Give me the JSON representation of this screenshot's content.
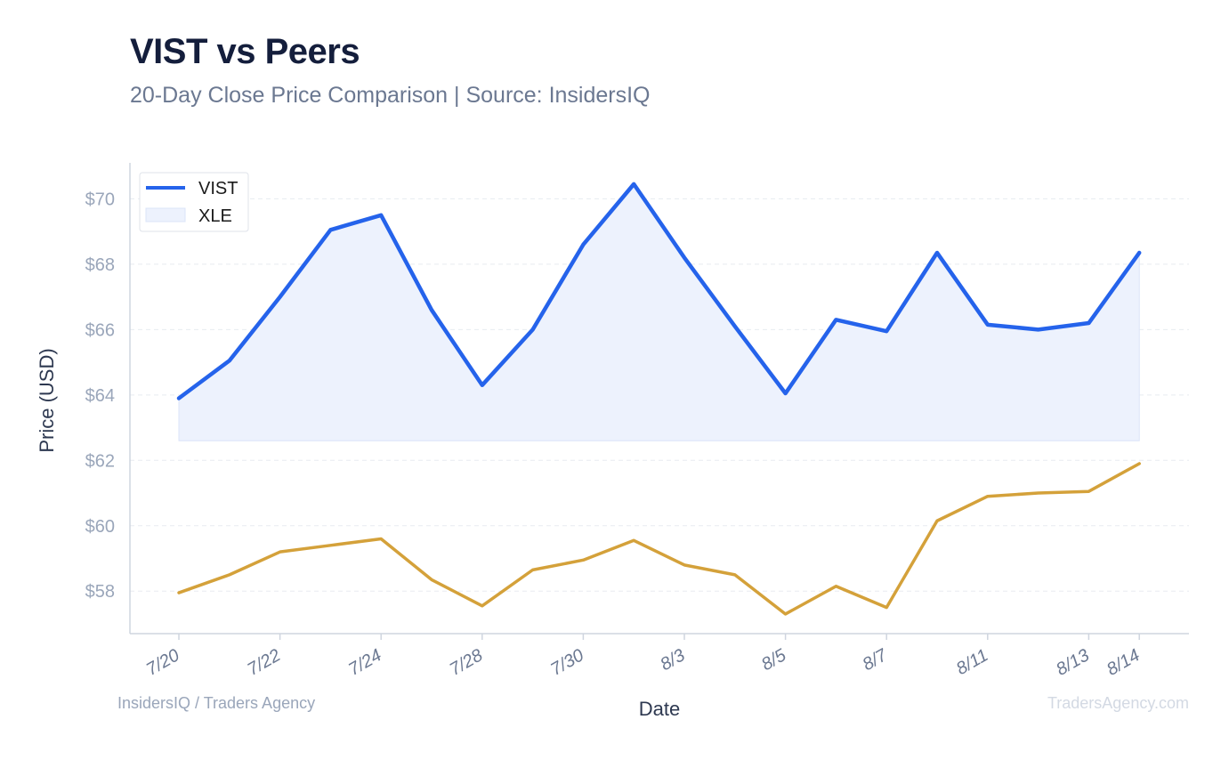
{
  "title": "VIST vs Peers",
  "subtitle": "20-Day Close Price Comparison | Source: InsidersIQ",
  "footer": {
    "left": "InsidersIQ / Traders Agency",
    "right": "TradersAgency.com"
  },
  "colors": {
    "vist": "#2563eb",
    "xle_fill": "#edf2fd",
    "peer_line": "#d4a13a",
    "grid": "#e8ebf0",
    "axis": "#cfd5df"
  },
  "chart_data": {
    "type": "line",
    "xlabel": "Date",
    "ylabel": "Price (USD)",
    "ylim": [
      56.7,
      71.1
    ],
    "yticks": [
      58,
      60,
      62,
      64,
      66,
      68,
      70
    ],
    "ytick_labels": [
      "$58",
      "$60",
      "$62",
      "$64",
      "$66",
      "$68",
      "$70"
    ],
    "x_labeled_ticks": [
      {
        "index": 0,
        "label": "7/20"
      },
      {
        "index": 2,
        "label": "7/22"
      },
      {
        "index": 4,
        "label": "7/24"
      },
      {
        "index": 6,
        "label": "7/28"
      },
      {
        "index": 8,
        "label": "7/30"
      },
      {
        "index": 10,
        "label": "8/3"
      },
      {
        "index": 12,
        "label": "8/5"
      },
      {
        "index": 14,
        "label": "8/7"
      },
      {
        "index": 16,
        "label": "8/11"
      },
      {
        "index": 18,
        "label": "8/13"
      },
      {
        "index": 19,
        "label": "8/14"
      }
    ],
    "legend": {
      "placement": "top-left",
      "entries": [
        "VIST",
        "XLE"
      ]
    },
    "grid": true,
    "series": [
      {
        "name": "VIST",
        "style": "line",
        "values": [
          63.9,
          65.05,
          67.0,
          69.05,
          69.5,
          66.6,
          64.3,
          66.0,
          68.6,
          70.45,
          68.2,
          66.1,
          64.05,
          66.3,
          65.95,
          68.35,
          66.15,
          66.0,
          66.2,
          68.35
        ]
      },
      {
        "name": "XLE",
        "style": "area",
        "baseline": 62.6,
        "values": [
          63.9,
          65.05,
          67.0,
          69.05,
          69.5,
          66.6,
          64.3,
          66.0,
          68.6,
          70.45,
          68.2,
          66.1,
          64.05,
          66.3,
          65.95,
          68.35,
          66.15,
          66.0,
          66.2,
          68.35
        ]
      },
      {
        "style": "line",
        "values": [
          57.95,
          58.5,
          59.2,
          59.4,
          59.6,
          58.35,
          57.55,
          58.65,
          58.95,
          59.55,
          58.8,
          58.5,
          57.3,
          58.15,
          57.5,
          60.15,
          60.9,
          61.0,
          61.05,
          61.9
        ]
      }
    ]
  }
}
